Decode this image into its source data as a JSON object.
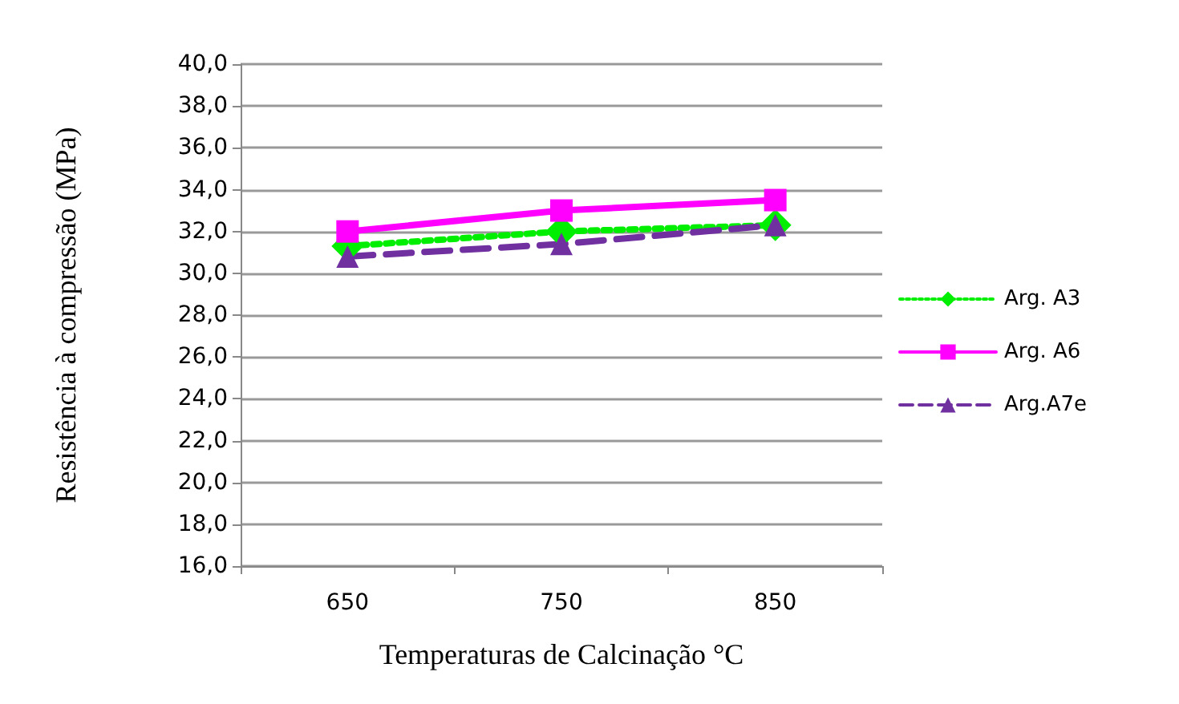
{
  "chart_data": {
    "type": "line",
    "xlabel": "Temperaturas de Calcinação °C",
    "ylabel": "Resistência à compressão (MPa)",
    "categories": [
      "650",
      "750",
      "850"
    ],
    "series": [
      {
        "name": "Arg. A3",
        "color": "#00ee00",
        "values": [
          31.3,
          32.0,
          32.3
        ],
        "marker": "diamond",
        "line_style": "dotted"
      },
      {
        "name": "Arg. A6",
        "color": "#ff00ff",
        "values": [
          32.0,
          33.0,
          33.5
        ],
        "marker": "square",
        "line_style": "solid"
      },
      {
        "name": "Arg.A7e",
        "color": "#7030a0",
        "values": [
          30.8,
          31.4,
          32.3
        ],
        "marker": "triangle",
        "line_style": "dashed"
      }
    ],
    "ylim": [
      16,
      40
    ],
    "yticks": [
      {
        "value": 16,
        "label": "16,0"
      },
      {
        "value": 18,
        "label": "18,0"
      },
      {
        "value": 20,
        "label": "20,0"
      },
      {
        "value": 22,
        "label": "22,0"
      },
      {
        "value": 24,
        "label": "24,0"
      },
      {
        "value": 26,
        "label": "26,0"
      },
      {
        "value": 28,
        "label": "28,0"
      },
      {
        "value": 30,
        "label": "30,0"
      },
      {
        "value": 32,
        "label": "32,0"
      },
      {
        "value": 34,
        "label": "34,0"
      },
      {
        "value": 36,
        "label": "36,0"
      },
      {
        "value": 38,
        "label": "38,0"
      },
      {
        "value": 40,
        "label": "40,0"
      }
    ],
    "grid": "y",
    "legend": "right"
  }
}
